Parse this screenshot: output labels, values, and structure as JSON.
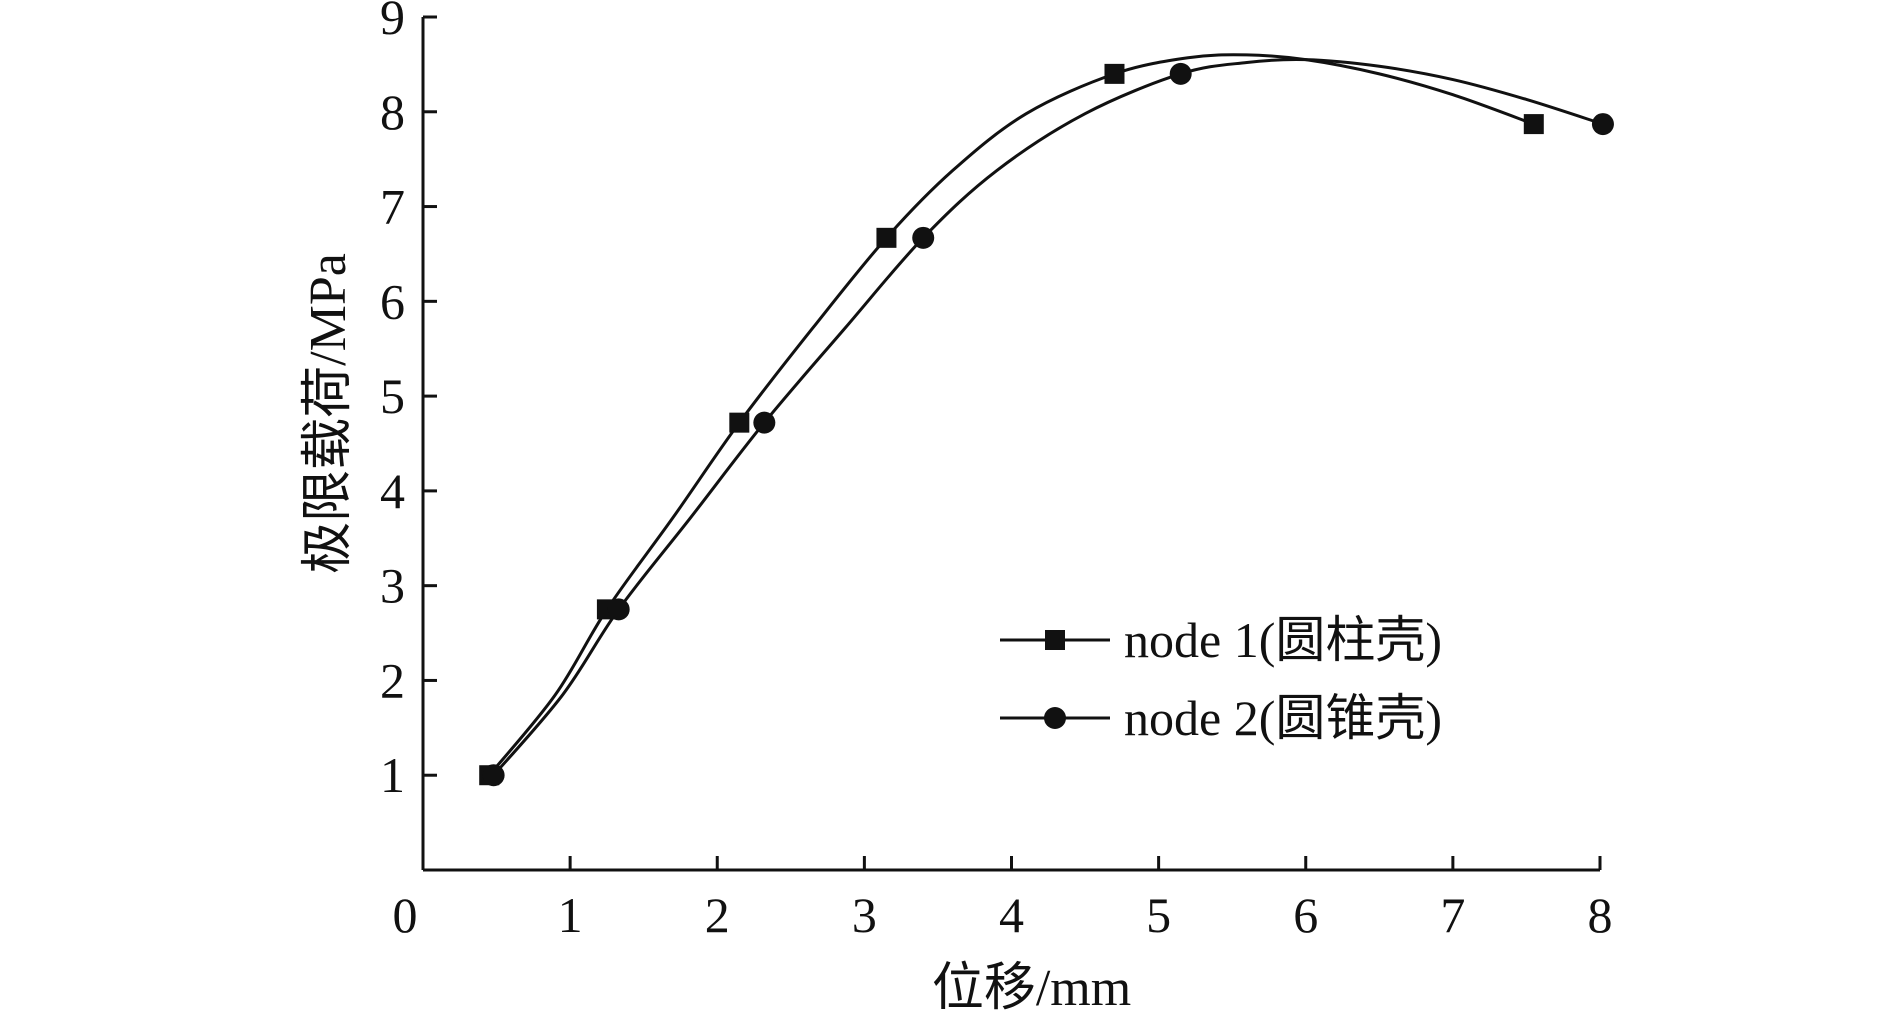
{
  "chart_data": {
    "type": "line",
    "xlabel": "位移/mm",
    "ylabel": "极限载荷/MPa",
    "xlim": [
      0,
      8
    ],
    "ylim": [
      0,
      9
    ],
    "x_ticks": [
      0,
      1,
      2,
      3,
      4,
      5,
      6,
      7,
      8
    ],
    "y_ticks": [
      1,
      2,
      3,
      4,
      5,
      6,
      7,
      8,
      9
    ],
    "grid": false,
    "legend_position": "right",
    "series": [
      {
        "name": "node 1(圆柱壳)",
        "marker": "square",
        "color": "#111111",
        "points": [
          [
            0.45,
            1.0
          ],
          [
            1.25,
            2.75
          ],
          [
            2.15,
            4.72
          ],
          [
            3.15,
            6.67
          ],
          [
            4.7,
            8.4
          ],
          [
            7.55,
            7.87
          ]
        ],
        "curve": [
          [
            0.45,
            1.0
          ],
          [
            0.9,
            1.85
          ],
          [
            1.25,
            2.75
          ],
          [
            1.7,
            3.72
          ],
          [
            2.15,
            4.72
          ],
          [
            2.65,
            5.72
          ],
          [
            3.15,
            6.67
          ],
          [
            3.6,
            7.38
          ],
          [
            4.1,
            7.98
          ],
          [
            4.7,
            8.4
          ],
          [
            5.2,
            8.57
          ],
          [
            5.6,
            8.6
          ],
          [
            6.0,
            8.55
          ],
          [
            6.5,
            8.4
          ],
          [
            7.0,
            8.18
          ],
          [
            7.55,
            7.87
          ]
        ]
      },
      {
        "name": "node 2(圆锥壳)",
        "marker": "circle",
        "color": "#111111",
        "points": [
          [
            0.48,
            1.0
          ],
          [
            1.33,
            2.75
          ],
          [
            2.32,
            4.72
          ],
          [
            3.4,
            6.67
          ],
          [
            5.15,
            8.4
          ],
          [
            8.02,
            7.87
          ]
        ],
        "curve": [
          [
            0.48,
            1.0
          ],
          [
            0.95,
            1.85
          ],
          [
            1.33,
            2.75
          ],
          [
            1.82,
            3.72
          ],
          [
            2.32,
            4.72
          ],
          [
            2.87,
            5.72
          ],
          [
            3.4,
            6.67
          ],
          [
            3.9,
            7.38
          ],
          [
            4.5,
            7.98
          ],
          [
            5.15,
            8.4
          ],
          [
            5.6,
            8.52
          ],
          [
            6.0,
            8.55
          ],
          [
            6.5,
            8.48
          ],
          [
            7.0,
            8.34
          ],
          [
            7.5,
            8.13
          ],
          [
            8.02,
            7.87
          ]
        ]
      }
    ]
  }
}
